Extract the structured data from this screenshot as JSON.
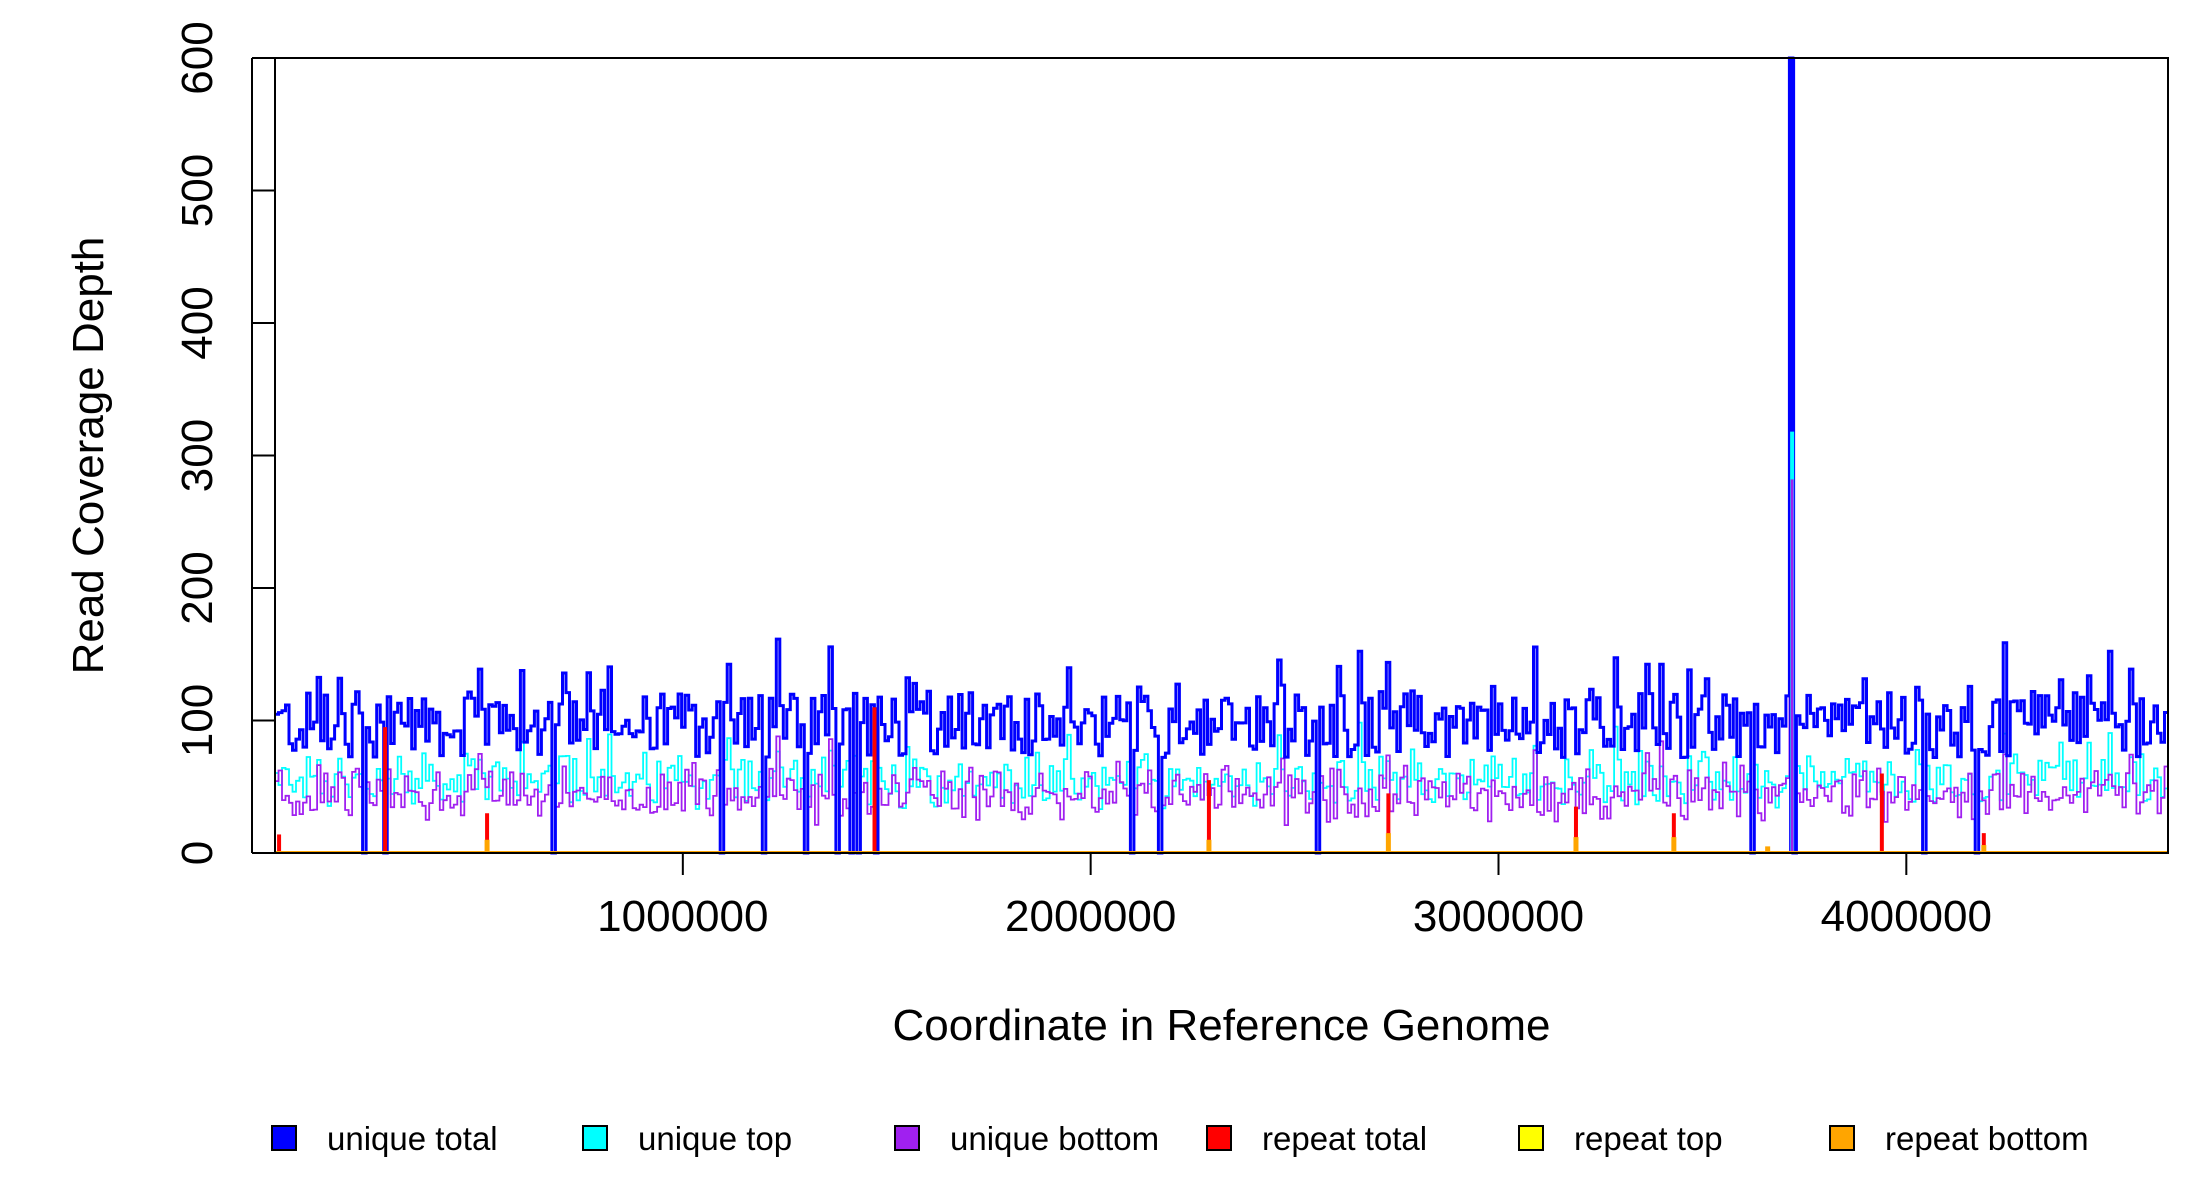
{
  "chart_data": {
    "type": "line",
    "xlabel": "Coordinate in Reference Genome",
    "ylabel": "Read Coverage Depth",
    "xlim": [
      0,
      4641652
    ],
    "ylim": [
      0,
      600
    ],
    "x_ticks": [
      1000000,
      2000000,
      3000000,
      4000000
    ],
    "x_tick_labels": [
      "1000000",
      "2000000",
      "3000000",
      "4000000"
    ],
    "y_ticks": [
      0,
      100,
      200,
      300,
      400,
      500,
      600
    ],
    "y_tick_labels": [
      "0",
      "100",
      "200",
      "300",
      "400",
      "500",
      "600"
    ],
    "legend_position": "bottom",
    "series": [
      {
        "name": "unique total",
        "color": "#0000FF",
        "typical_level": 100,
        "style": "step"
      },
      {
        "name": "unique top",
        "color": "#00FFFF",
        "typical_level": 55,
        "style": "step"
      },
      {
        "name": "unique bottom",
        "color": "#A020F0",
        "typical_level": 50,
        "style": "step"
      },
      {
        "name": "repeat total",
        "color": "#FF0000",
        "typical_level": 0,
        "style": "step"
      },
      {
        "name": "repeat top",
        "color": "#FFFF00",
        "typical_level": 0,
        "style": "step"
      },
      {
        "name": "repeat bottom",
        "color": "#FFA500",
        "typical_level": 0,
        "style": "step"
      }
    ],
    "spike": {
      "x": 3720000,
      "unique_total": 600,
      "unique_top": 318,
      "unique_bottom": 282
    },
    "dropouts_x": [
      220000,
      270000,
      680000,
      1100000,
      1200000,
      1300000,
      1380000,
      1410000,
      1430000,
      1470000,
      2100000,
      2170000,
      2560000,
      3620000,
      3730000,
      4040000,
      4170000
    ],
    "repeat_total_peaks": [
      {
        "x": 10000,
        "y": 14
      },
      {
        "x": 270000,
        "y": 95
      },
      {
        "x": 520000,
        "y": 30
      },
      {
        "x": 1470000,
        "y": 110
      },
      {
        "x": 2290000,
        "y": 55
      },
      {
        "x": 2730000,
        "y": 45
      },
      {
        "x": 3190000,
        "y": 35
      },
      {
        "x": 3430000,
        "y": 30
      },
      {
        "x": 3940000,
        "y": 60
      },
      {
        "x": 4190000,
        "y": 15
      }
    ],
    "repeat_bottom_peaks": [
      {
        "x": 520000,
        "y": 10
      },
      {
        "x": 2290000,
        "y": 10
      },
      {
        "x": 2730000,
        "y": 15
      },
      {
        "x": 3190000,
        "y": 12
      },
      {
        "x": 3430000,
        "y": 12
      },
      {
        "x": 3660000,
        "y": 5
      },
      {
        "x": 4190000,
        "y": 6
      }
    ],
    "legend": [
      {
        "label": "unique total",
        "color": "#0000FF"
      },
      {
        "label": "unique top",
        "color": "#00FFFF"
      },
      {
        "label": "unique bottom",
        "color": "#A020F0"
      },
      {
        "label": "repeat total",
        "color": "#FF0000"
      },
      {
        "label": "repeat top",
        "color": "#FFFF00"
      },
      {
        "label": "repeat bottom",
        "color": "#FFA500"
      }
    ]
  }
}
